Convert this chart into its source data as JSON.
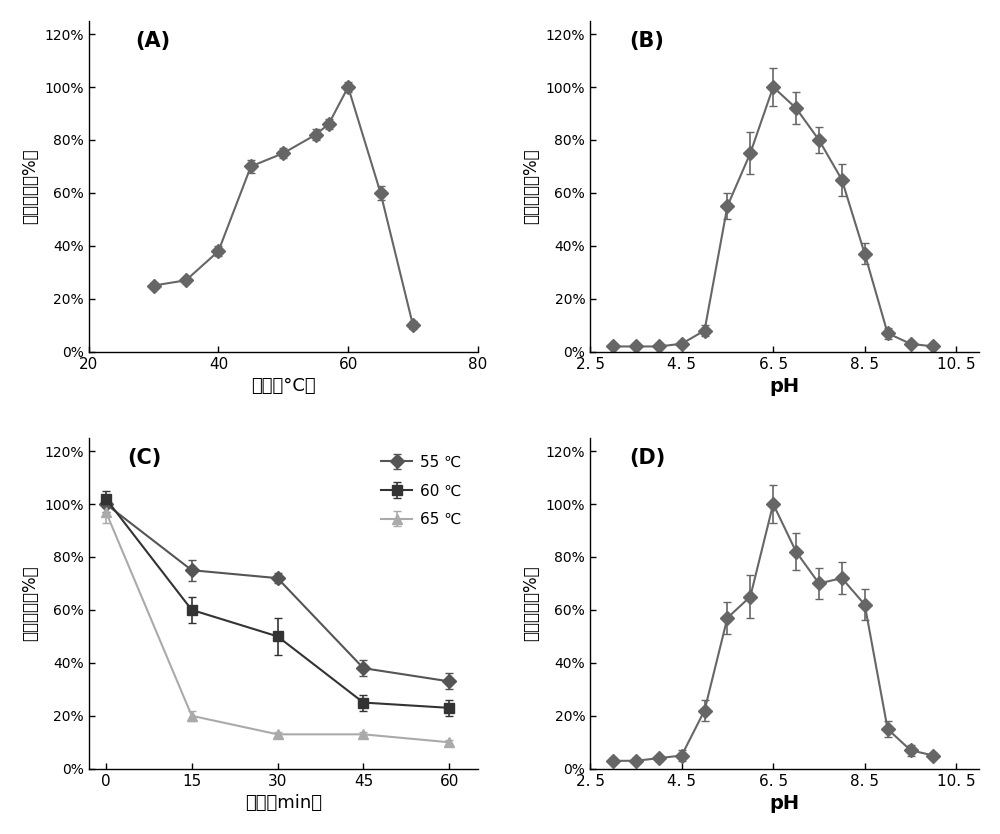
{
  "panel_A": {
    "title": "(A)",
    "x": [
      30,
      35,
      40,
      45,
      50,
      55,
      57,
      60,
      65,
      70
    ],
    "y": [
      0.25,
      0.27,
      0.38,
      0.7,
      0.75,
      0.82,
      0.86,
      1.0,
      0.6,
      0.1
    ],
    "yerr": [
      0.01,
      0.01,
      0.02,
      0.025,
      0.02,
      0.02,
      0.02,
      0.02,
      0.025,
      0.015
    ],
    "xlabel": "温度（°C）",
    "ylabel": "相对活性（%）",
    "xlim": [
      20,
      80
    ],
    "ylim": [
      0,
      1.25
    ],
    "xticks": [
      20,
      40,
      60,
      80
    ],
    "color": "#666666"
  },
  "panel_B": {
    "title": "(B)",
    "x": [
      3.0,
      3.5,
      4.0,
      4.5,
      5.0,
      5.5,
      6.0,
      6.5,
      7.0,
      7.5,
      8.0,
      8.5,
      9.0,
      9.5,
      10.0
    ],
    "y": [
      0.02,
      0.02,
      0.02,
      0.03,
      0.08,
      0.55,
      0.75,
      1.0,
      0.92,
      0.8,
      0.65,
      0.37,
      0.07,
      0.03,
      0.02
    ],
    "yerr": [
      0.005,
      0.005,
      0.005,
      0.01,
      0.02,
      0.05,
      0.08,
      0.07,
      0.06,
      0.05,
      0.06,
      0.04,
      0.02,
      0.01,
      0.005
    ],
    "xlabel": "pH",
    "ylabel": "相对活性（%）",
    "xlim": [
      2.5,
      11.0
    ],
    "ylim": [
      0,
      1.25
    ],
    "xticks": [
      2.5,
      4.5,
      6.5,
      8.5,
      10.5
    ],
    "xticklabels": [
      "2. 5",
      "4. 5",
      "6. 5",
      "8. 5",
      "10. 5"
    ],
    "color": "#666666"
  },
  "panel_C": {
    "title": "(C)",
    "xlabel": "时间（min）",
    "ylabel": "相对活性（%）",
    "xlim": [
      -3,
      65
    ],
    "ylim": [
      0,
      1.25
    ],
    "xticks": [
      0,
      15,
      30,
      45,
      60
    ],
    "series": [
      {
        "label": "55 ℃",
        "x": [
          0,
          15,
          30,
          45,
          60
        ],
        "y": [
          1.0,
          0.75,
          0.72,
          0.38,
          0.33
        ],
        "yerr": [
          0.03,
          0.04,
          0.02,
          0.03,
          0.03
        ],
        "color": "#555555",
        "marker": "D",
        "linestyle": "-"
      },
      {
        "label": "60 ℃",
        "x": [
          0,
          15,
          30,
          45,
          60
        ],
        "y": [
          1.02,
          0.6,
          0.5,
          0.25,
          0.23
        ],
        "yerr": [
          0.03,
          0.05,
          0.07,
          0.03,
          0.03
        ],
        "color": "#333333",
        "marker": "s",
        "linestyle": "-"
      },
      {
        "label": "65 ℃",
        "x": [
          0,
          15,
          30,
          45,
          60
        ],
        "y": [
          0.97,
          0.2,
          0.13,
          0.13,
          0.1
        ],
        "yerr": [
          0.04,
          0.02,
          0.01,
          0.01,
          0.01
        ],
        "color": "#aaaaaa",
        "marker": "^",
        "linestyle": "-"
      }
    ]
  },
  "panel_D": {
    "title": "(D)",
    "x": [
      3.0,
      3.5,
      4.0,
      4.5,
      5.0,
      5.5,
      6.0,
      6.5,
      7.0,
      7.5,
      8.0,
      8.5,
      9.0,
      9.5,
      10.0
    ],
    "y": [
      0.03,
      0.03,
      0.04,
      0.05,
      0.22,
      0.57,
      0.65,
      1.0,
      0.82,
      0.7,
      0.72,
      0.62,
      0.15,
      0.07,
      0.05
    ],
    "yerr": [
      0.01,
      0.01,
      0.01,
      0.02,
      0.04,
      0.06,
      0.08,
      0.07,
      0.07,
      0.06,
      0.06,
      0.06,
      0.03,
      0.02,
      0.01
    ],
    "xlabel": "pH",
    "ylabel": "相对活性（%）",
    "xlim": [
      2.5,
      11.0
    ],
    "ylim": [
      0,
      1.25
    ],
    "xticks": [
      2.5,
      4.5,
      6.5,
      8.5,
      10.5
    ],
    "xticklabels": [
      "2. 5",
      "4. 5",
      "6. 5",
      "8. 5",
      "10. 5"
    ],
    "color": "#666666"
  },
  "line_color": "#666666",
  "marker": "D",
  "markersize": 7,
  "linewidth": 1.5,
  "capsize": 3,
  "elinewidth": 1.2,
  "title_fontsize": 15,
  "label_fontsize": 13,
  "tick_fontsize": 11,
  "ylabel_fontsize": 12
}
